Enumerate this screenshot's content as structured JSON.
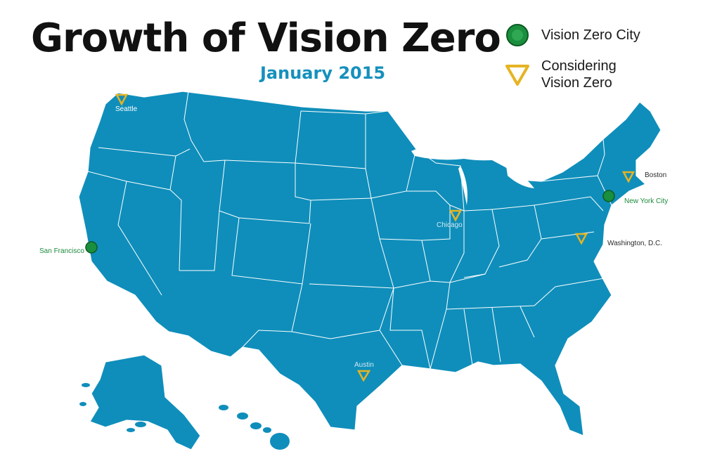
{
  "title": "Growth of Vision Zero",
  "subtitle": "January 2015",
  "legend": {
    "vision_zero_city": "Vision Zero City",
    "considering": "Considering Vision Zero"
  },
  "colors": {
    "map_fill": "#0f8ebb",
    "state_border": "#ffffff",
    "vision_zero_city": "#1a8f3d",
    "considering": "#e6b422",
    "subtitle": "#1590bd"
  },
  "cities": {
    "seattle": {
      "name": "Seattle",
      "status": "considering"
    },
    "san_francisco": {
      "name": "San Francisco",
      "status": "vision_zero_city"
    },
    "chicago": {
      "name": "Chicago",
      "status": "considering"
    },
    "austin": {
      "name": "Austin",
      "status": "considering"
    },
    "boston": {
      "name": "Boston",
      "status": "considering"
    },
    "new_york_city": {
      "name": "New York City",
      "status": "vision_zero_city"
    },
    "washington_dc": {
      "name": "Washington, D.C.",
      "status": "considering"
    }
  }
}
